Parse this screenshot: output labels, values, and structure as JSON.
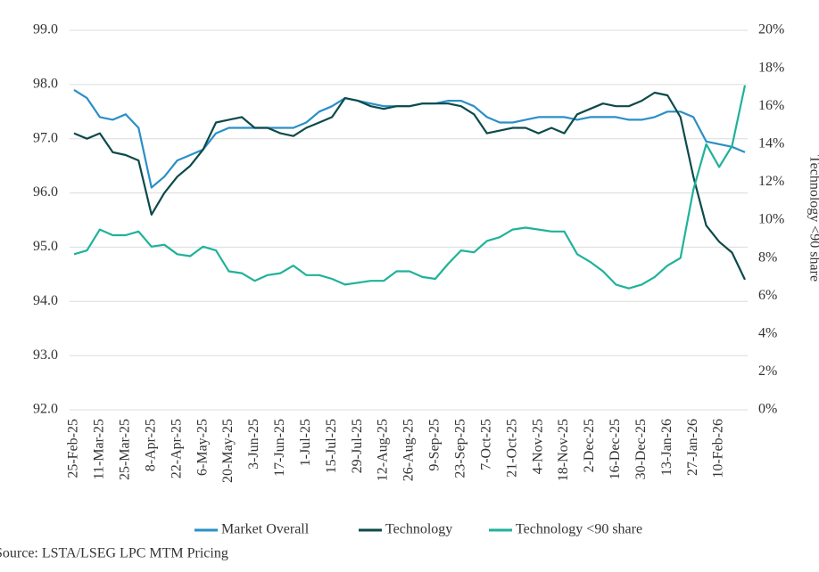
{
  "chart_data": {
    "type": "line",
    "categories": [
      "25-Feb-25",
      null,
      "11-Mar-25",
      null,
      "25-Mar-25",
      null,
      "8-Apr-25",
      null,
      "22-Apr-25",
      null,
      "6-May-25",
      null,
      "20-May-25",
      null,
      "3-Jun-25",
      null,
      "17-Jun-25",
      null,
      "1-Jul-25",
      null,
      "15-Jul-25",
      null,
      "29-Jul-25",
      null,
      "12-Aug-25",
      null,
      "26-Aug-25",
      null,
      "9-Sep-25",
      null,
      "23-Sep-25",
      null,
      "7-Oct-25",
      null,
      "21-Oct-25",
      null,
      "4-Nov-25",
      null,
      "18-Nov-25",
      null,
      "2-Dec-25",
      null,
      "16-Dec-25",
      null,
      "30-Dec-25",
      null,
      "13-Jan-26",
      null,
      "27-Jan-26",
      null,
      "10-Feb-26",
      null,
      null
    ],
    "series": [
      {
        "name": "Market Overall",
        "color": "#2a8fc7",
        "values": [
          97.9,
          97.75,
          97.4,
          97.35,
          97.45,
          97.2,
          96.1,
          96.3,
          96.6,
          96.7,
          96.8,
          97.1,
          97.2,
          97.2,
          97.2,
          97.2,
          97.2,
          97.2,
          97.3,
          97.5,
          97.6,
          97.75,
          97.7,
          97.65,
          97.6,
          97.6,
          97.6,
          97.65,
          97.65,
          97.7,
          97.7,
          97.6,
          97.4,
          97.3,
          97.3,
          97.35,
          97.4,
          97.4,
          97.4,
          97.35,
          97.4,
          97.4,
          97.4,
          97.35,
          97.35,
          97.4,
          97.5,
          97.5,
          97.4,
          96.95,
          96.9,
          96.85,
          96.75
        ]
      },
      {
        "name": "Technology",
        "color": "#0d4a4a",
        "values": [
          97.1,
          97.0,
          97.1,
          96.75,
          96.7,
          96.6,
          95.6,
          96.0,
          96.3,
          96.5,
          96.8,
          97.3,
          97.35,
          97.4,
          97.2,
          97.2,
          97.1,
          97.05,
          97.2,
          97.3,
          97.4,
          97.75,
          97.7,
          97.6,
          97.55,
          97.6,
          97.6,
          97.65,
          97.65,
          97.65,
          97.6,
          97.45,
          97.1,
          97.15,
          97.2,
          97.2,
          97.1,
          97.2,
          97.1,
          97.45,
          97.55,
          97.65,
          97.6,
          97.6,
          97.7,
          97.85,
          97.8,
          97.4,
          96.3,
          95.4,
          95.1,
          94.9,
          94.4
        ]
      },
      {
        "name": "Technology <90 share",
        "color": "#1fb29a",
        "axis": "y2",
        "values": [
          8.2,
          8.4,
          9.5,
          9.2,
          9.2,
          9.4,
          8.6,
          8.7,
          8.2,
          8.1,
          8.6,
          8.4,
          7.3,
          7.2,
          6.8,
          7.1,
          7.2,
          7.6,
          7.1,
          7.1,
          6.9,
          6.6,
          6.7,
          6.8,
          6.8,
          7.3,
          7.3,
          7.0,
          6.9,
          7.7,
          8.4,
          8.3,
          8.9,
          9.1,
          9.5,
          9.6,
          9.5,
          9.4,
          9.4,
          8.2,
          7.8,
          7.3,
          6.6,
          6.4,
          6.6,
          7.0,
          7.6,
          8.0,
          11.6,
          14.0,
          12.8,
          13.9,
          17.1
        ]
      }
    ],
    "ylim": [
      92,
      99
    ],
    "yticks": [
      {
        "value": 92,
        "label": "92.0"
      },
      {
        "value": 93,
        "label": "93.0"
      },
      {
        "value": 94,
        "label": "94.0"
      },
      {
        "value": 95,
        "label": "95.0"
      },
      {
        "value": 96,
        "label": "96.0"
      },
      {
        "value": 97,
        "label": "97.0"
      },
      {
        "value": 98,
        "label": "98.0"
      },
      {
        "value": 99,
        "label": "99.0"
      }
    ],
    "y2lim": [
      0,
      20
    ],
    "y2ticks": [
      {
        "value": 0,
        "label": "0%"
      },
      {
        "value": 2,
        "label": "2%"
      },
      {
        "value": 4,
        "label": "4%"
      },
      {
        "value": 6,
        "label": "6%"
      },
      {
        "value": 8,
        "label": "8%"
      },
      {
        "value": 10,
        "label": "10%"
      },
      {
        "value": 12,
        "label": "12%"
      },
      {
        "value": 14,
        "label": "14%"
      },
      {
        "value": 16,
        "label": "16%"
      },
      {
        "value": 18,
        "label": "18%"
      },
      {
        "value": 20,
        "label": "20%"
      }
    ],
    "y2label": "Technology <90 share",
    "grid": true,
    "legend": "bottom",
    "source": "Source: LSTA/LSEG LPC MTM Pricing"
  }
}
